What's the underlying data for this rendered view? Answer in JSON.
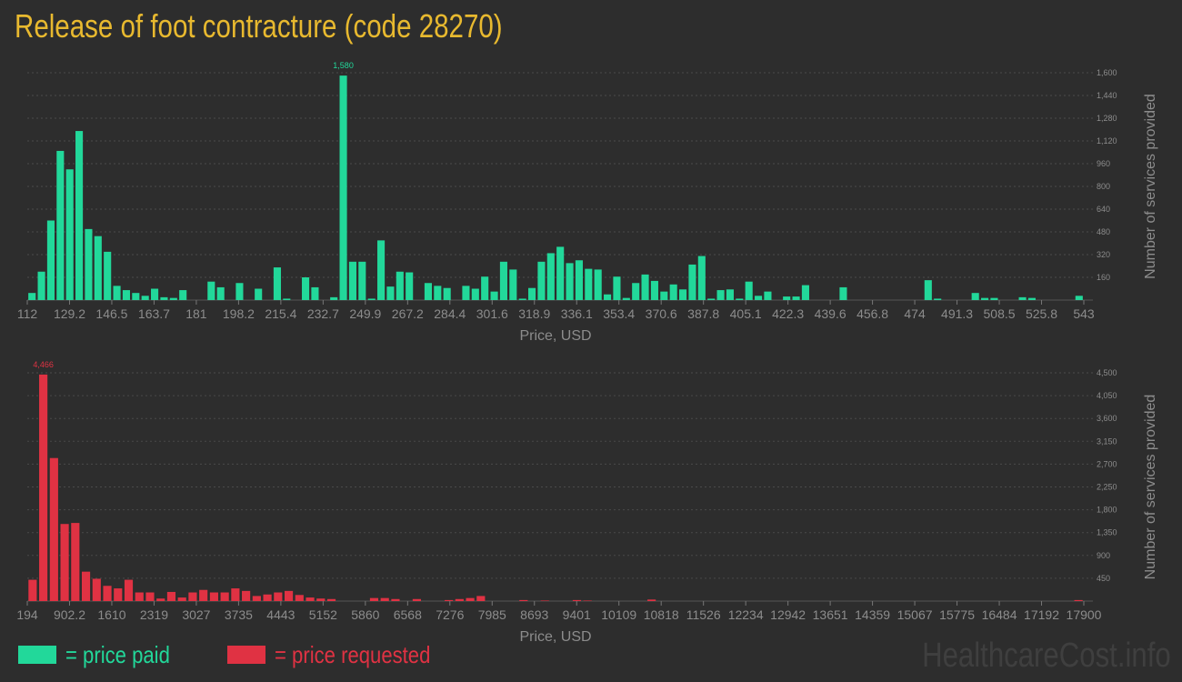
{
  "title": "Release of foot contracture (code 28270)",
  "colors": {
    "paid": "#22d89a",
    "requested": "#e03243",
    "title": "#e8b92f",
    "axis_text": "#8c8c8c",
    "grid": "#4a4a4a",
    "background": "#2d2d2d"
  },
  "legend": {
    "paid_label": "= price paid",
    "requested_label": "= price requested"
  },
  "watermark": "HealthcareCost.info",
  "chart_data": [
    {
      "type": "bar",
      "series_name": "price paid",
      "xlabel": "Price, USD",
      "ylabel": "Number of services provided",
      "ylim": [
        0,
        1600
      ],
      "yticks": [
        160,
        320,
        480,
        640,
        800,
        960,
        1120,
        1280,
        1440,
        1600
      ],
      "ytick_labels": [
        "160",
        "320",
        "480",
        "640",
        "800",
        "960",
        "1,120",
        "1,280",
        "1,440",
        "1,600"
      ],
      "xtick_labels": [
        "112",
        "129.2",
        "146.5",
        "163.7",
        "181",
        "198.2",
        "215.4",
        "232.7",
        "249.9",
        "267.2",
        "284.4",
        "301.6",
        "318.9",
        "336.1",
        "353.4",
        "370.6",
        "387.8",
        "405.1",
        "422.3",
        "439.6",
        "456.8",
        "474",
        "491.3",
        "508.5",
        "525.8",
        "543"
      ],
      "xrange": [
        112,
        543
      ],
      "peak_label": "1,580",
      "grid": true,
      "values": [
        50,
        200,
        560,
        1050,
        920,
        1190,
        500,
        450,
        340,
        100,
        70,
        50,
        30,
        80,
        20,
        15,
        70,
        0,
        0,
        130,
        90,
        0,
        120,
        0,
        80,
        0,
        230,
        10,
        0,
        160,
        90,
        0,
        20,
        1580,
        270,
        270,
        10,
        420,
        95,
        200,
        195,
        0,
        120,
        100,
        85,
        0,
        100,
        80,
        165,
        60,
        270,
        215,
        10,
        85,
        270,
        330,
        375,
        260,
        280,
        220,
        215,
        40,
        165,
        15,
        120,
        180,
        135,
        60,
        110,
        75,
        250,
        310,
        10,
        70,
        75,
        10,
        130,
        30,
        60,
        0,
        25,
        25,
        105,
        0,
        0,
        0,
        90,
        0,
        0,
        0,
        0,
        0,
        0,
        0,
        0,
        140,
        10,
        0,
        0,
        0,
        50,
        15,
        15,
        0,
        0,
        20,
        15,
        0,
        0,
        0,
        0,
        30
      ]
    },
    {
      "type": "bar",
      "series_name": "price requested",
      "xlabel": "Price, USD",
      "ylabel": "Number of services provided",
      "ylim": [
        0,
        4500
      ],
      "yticks": [
        450,
        900,
        1350,
        1800,
        2250,
        2700,
        3150,
        3600,
        4050,
        4500
      ],
      "ytick_labels": [
        "450",
        "900",
        "1,350",
        "1,800",
        "2,250",
        "2,700",
        "3,150",
        "3,600",
        "4,050",
        "4,500"
      ],
      "xtick_labels": [
        "194",
        "902.2",
        "1610",
        "2319",
        "3027",
        "3735",
        "4443",
        "5152",
        "5860",
        "6568",
        "7276",
        "7985",
        "8693",
        "9401",
        "10109",
        "10818",
        "11526",
        "12234",
        "12942",
        "13651",
        "14359",
        "15067",
        "15775",
        "16484",
        "17192",
        "17900"
      ],
      "xrange": [
        194,
        17900
      ],
      "peak_label": "4,466",
      "grid": true,
      "values": [
        420,
        4466,
        2820,
        1520,
        1540,
        580,
        440,
        300,
        250,
        420,
        170,
        170,
        50,
        180,
        70,
        170,
        220,
        170,
        170,
        250,
        200,
        100,
        130,
        170,
        200,
        120,
        70,
        50,
        40,
        0,
        0,
        0,
        60,
        60,
        40,
        0,
        40,
        0,
        0,
        20,
        40,
        60,
        100,
        0,
        0,
        0,
        20,
        0,
        10,
        0,
        0,
        20,
        10,
        0,
        0,
        0,
        0,
        0,
        30,
        0,
        0,
        0,
        0,
        0,
        0,
        0,
        0,
        0,
        0,
        0,
        0,
        0,
        0,
        0,
        0,
        0,
        0,
        0,
        0,
        0,
        0,
        0,
        0,
        0,
        0,
        0,
        0,
        0,
        0,
        0,
        0,
        0,
        0,
        0,
        0,
        0,
        0,
        0,
        20
      ]
    }
  ]
}
